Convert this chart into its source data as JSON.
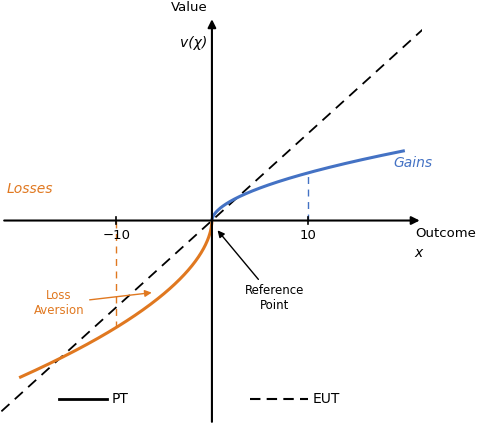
{
  "xlabel_text": "Outcome",
  "xlabel_x": "x",
  "ylabel_text": "Value",
  "ylabel_vx": "v(χ)",
  "gains_label": "Gains",
  "losses_label": "Losses",
  "loss_aversion_label": "Loss\nAversion",
  "reference_point_label": "Reference\nPoint",
  "pt_label": "PT",
  "eut_label": "EUT",
  "tick_neg10": "−10",
  "tick_pos10": "10",
  "xlim": [
    -22,
    22
  ],
  "ylim": [
    -16,
    16
  ],
  "gains_color": "#4472C4",
  "losses_color": "#E07820",
  "background_color": "#ffffff",
  "alpha_gain": 0.55,
  "alpha_loss": 0.55,
  "lambda_loss": 2.25,
  "eut_slope": 0.68,
  "gain_scale": 1.05,
  "loss_scale": 1.05
}
